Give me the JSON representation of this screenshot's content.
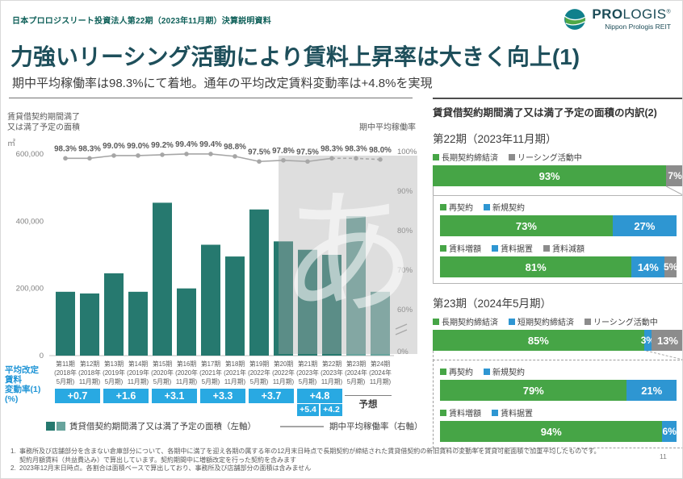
{
  "header": {
    "doc_title": "日本プロロジスリート投資法人第22期（2023年11月期）決算説明資料",
    "logo": {
      "brand_bold": "PRO",
      "brand_light": "LOGIS",
      "registered": "®",
      "subtitle": "Nippon Prologis REIT"
    }
  },
  "page": {
    "title": "力強いリーシング活動により賃料上昇率は大きく向上(1)",
    "subtitle": "期中平均稼働率は98.3%にて着地。通年の平均改定賃料変動率は+4.8%を実現",
    "number": "11"
  },
  "watermark": "あ",
  "colors": {
    "bar": "#26796f",
    "bar_forecast": "#68a49d",
    "line": "#a6a6a6",
    "accent_blue": "#29a9e2",
    "green": "#46a546",
    "blue": "#2e96d2",
    "gray": "#8c8c8c"
  },
  "chart_data": [
    {
      "type": "bar+line",
      "categories": [
        {
          "period": "第11期",
          "year": "(2018年",
          "term": "5月期)"
        },
        {
          "period": "第12期",
          "year": "(2018年",
          "term": "11月期)"
        },
        {
          "period": "第13期",
          "year": "(2019年",
          "term": "5月期)"
        },
        {
          "period": "第14期",
          "year": "(2019年",
          "term": "11月期)"
        },
        {
          "period": "第15期",
          "year": "(2020年",
          "term": "5月期)"
        },
        {
          "period": "第16期",
          "year": "(2020年",
          "term": "11月期)"
        },
        {
          "period": "第17期",
          "year": "(2021年",
          "term": "5月期)"
        },
        {
          "period": "第18期",
          "year": "(2021年",
          "term": "11月期)"
        },
        {
          "period": "第19期",
          "year": "(2022年",
          "term": "5月期)"
        },
        {
          "period": "第20期",
          "year": "(2022年",
          "term": "11月期)"
        },
        {
          "period": "第21期",
          "year": "(2023年",
          "term": "5月期)"
        },
        {
          "period": "第22期",
          "year": "(2023年",
          "term": "11月期)"
        },
        {
          "period": "第23期",
          "year": "(2024年",
          "term": "5月期)"
        },
        {
          "period": "第24期",
          "year": "(2024年",
          "term": "11月期)"
        }
      ],
      "bar_series": {
        "name": "賃貸借契約期間満了又は満了予定の面積（左軸）",
        "values": [
          190000,
          185000,
          245000,
          190000,
          455000,
          200000,
          330000,
          295000,
          435000,
          340000,
          315000,
          300000,
          415000,
          190000
        ],
        "forecast_start_index": 12
      },
      "line_series": {
        "name": "期中平均稼働率（右軸）",
        "values": [
          98.3,
          98.3,
          99.0,
          99.0,
          99.2,
          99.4,
          99.4,
          98.8,
          97.5,
          97.8,
          97.5,
          98.3,
          98.3,
          98.0
        ],
        "labels": [
          "98.3%",
          "98.3%",
          "99.0%",
          "99.0%",
          "99.2%",
          "99.4%",
          "99.4%",
          "98.8%",
          "97.5%",
          "97.8%",
          "97.5%",
          "98.3%",
          "98.3%",
          "98.0%"
        ],
        "dashed_from_index": 11
      },
      "left_axis": {
        "title_lines": [
          "賃貸借契約期間満了",
          "又は満了予定の面積"
        ],
        "unit": "㎡",
        "ticks": [
          {
            "label": "600,000",
            "value": 600000
          },
          {
            "label": "400,000",
            "value": 400000
          },
          {
            "label": "200,000",
            "value": 200000
          },
          {
            "label": "0",
            "value": 0
          }
        ],
        "max": 600000
      },
      "right_axis": {
        "title": "期中平均稼働率",
        "ticks": [
          {
            "label": "100%",
            "value": 100
          },
          {
            "label": "90%",
            "value": 90
          },
          {
            "label": "80%",
            "value": 80
          },
          {
            "label": "70%",
            "value": 70
          },
          {
            "label": "60%",
            "value": 60
          },
          {
            "label": "0%",
            "value": 0
          }
        ],
        "has_break": true
      }
    },
    {
      "type": "stacked-bar",
      "title": "第22期（2023年11月期）",
      "box_style": "solid",
      "connector_from_value": 93,
      "bars": [
        {
          "in_box": false,
          "segments": [
            {
              "label": "長期契約締結済",
              "value": 93,
              "pct": "93%",
              "color_key": "green"
            },
            {
              "label": "リーシング活動中",
              "value": 7,
              "pct": "7%",
              "color_key": "gray"
            }
          ]
        },
        {
          "in_box": true,
          "segments": [
            {
              "label": "再契約",
              "value": 73,
              "pct": "73%",
              "color_key": "green"
            },
            {
              "label": "新規契約",
              "value": 27,
              "pct": "27%",
              "color_key": "blue"
            }
          ]
        },
        {
          "in_box": true,
          "segments": [
            {
              "label": "賃料増額",
              "value": 81,
              "pct": "81%",
              "color_key": "green"
            },
            {
              "label": "賃料据置",
              "value": 14,
              "pct": "14%",
              "color_key": "blue"
            },
            {
              "label": "賃料減額",
              "value": 5,
              "pct": "5%",
              "color_key": "gray"
            }
          ]
        }
      ]
    },
    {
      "type": "stacked-bar",
      "title": "第23期（2024年5月期）",
      "box_style": "dashed",
      "connector_from_value": 85,
      "bars": [
        {
          "in_box": false,
          "segments": [
            {
              "label": "長期契約締結済",
              "value": 85,
              "pct": "85%",
              "color_key": "green"
            },
            {
              "label": "短期契約締結済",
              "value": 3,
              "pct": "3%",
              "color_key": "blue"
            },
            {
              "label": "リーシング活動中",
              "value": 13,
              "pct": "13%",
              "color_key": "gray"
            }
          ]
        },
        {
          "in_box": true,
          "segments": [
            {
              "label": "再契約",
              "value": 79,
              "pct": "79%",
              "color_key": "green"
            },
            {
              "label": "新規契約",
              "value": 21,
              "pct": "21%",
              "color_key": "blue"
            }
          ]
        },
        {
          "in_box": true,
          "segments": [
            {
              "label": "賃料増額",
              "value": 94,
              "pct": "94%",
              "color_key": "green"
            },
            {
              "label": "賃料据置",
              "value": 6,
              "pct": "6%",
              "color_key": "blue"
            }
          ]
        }
      ]
    }
  ],
  "rent_change": {
    "axis_label_lines": [
      "平均改定",
      "賃料",
      "変動率(1)",
      "(%)"
    ],
    "boxes": [
      {
        "label": "+0.7"
      },
      {
        "label": "+1.6"
      },
      {
        "label": "+3.1"
      },
      {
        "label": "+3.3"
      },
      {
        "label": "+3.7"
      },
      {
        "label": "+4.8"
      }
    ],
    "half_period_boxes": [
      {
        "label": "+5.4"
      },
      {
        "label": "+4.2"
      }
    ],
    "forecast_label": "予想"
  },
  "chart_legend": {
    "bars_label": "賃貸借契約期間満了又は満了予定の面積（左軸）",
    "line_label": "期中平均稼働率（右軸）"
  },
  "right_panel": {
    "title": "賃貸借契約期間満了又は満了予定の面積の内訳(2)"
  },
  "footnotes": [
    {
      "num": "1.",
      "lines": [
        "事務所及び店舗部分を含まない倉庫部分について、各期中に満了を迎え各期の属する年の12月末日時点で長期契約が締結された賃貸借契約の新旧賃料の変動率を賃貸可能面積で加重平均したものです。",
        "契約月額賃料（共益費込み）で算出しています。契約期間中に増額改定を行った契約を含みます"
      ]
    },
    {
      "num": "2.",
      "lines": [
        "2023年12月末日時点。各割合は面積ベースで算出しており、事務所及び店舗部分の面積は含みません"
      ]
    }
  ]
}
